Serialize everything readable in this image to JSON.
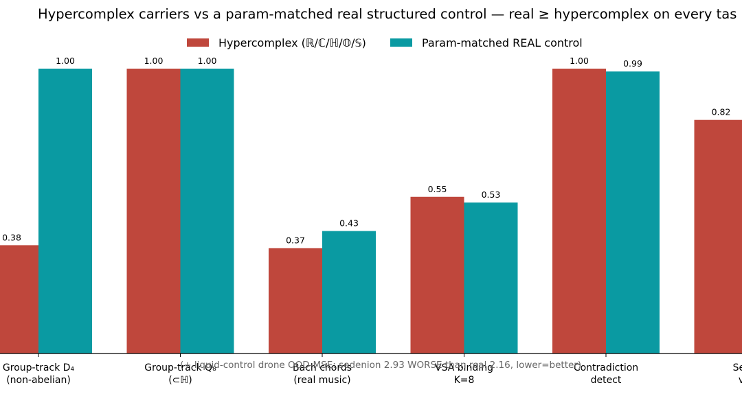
{
  "chart_data": {
    "type": "bar",
    "title": "Hypercomplex carriers vs a param-matched real structured control — real ≥ hypercomplex on every tas",
    "categories": [
      [
        "Group-track D₄",
        "(non-abelian)"
      ],
      [
        "Group-track Q₈",
        "(⊂ℍ)"
      ],
      [
        "Bach chords",
        "(real music)"
      ],
      [
        "VSA binding",
        "K=8"
      ],
      [
        "Contradiction",
        "detect"
      ],
      [
        "Seden",
        "vs s"
      ]
    ],
    "series": [
      {
        "name": "Hypercomplex (ℝ/ℂ/ℍ/𝕆/𝕊)",
        "color": "#bf473c",
        "values": [
          0.38,
          1.0,
          0.37,
          0.55,
          1.0,
          0.82
        ],
        "labels": [
          "0.38",
          "1.00",
          "0.37",
          "0.55",
          "1.00",
          "0.82"
        ]
      },
      {
        "name": "Param-matched REAL control",
        "color": "#0a9aa2",
        "values": [
          1.0,
          1.0,
          0.43,
          0.53,
          0.99,
          null
        ],
        "labels": [
          "1.00",
          "1.00",
          "0.43",
          "0.53",
          "0.99",
          ""
        ]
      }
    ],
    "ylim": [
      0,
      1.0
    ],
    "xlabel": "",
    "ylabel": "",
    "grid": false,
    "legend_position": "top-center",
    "footnote": "(+ liquid-control drone OOD-MSE: sedenion 2.93 WORSE than real 2.16, lower=better)"
  }
}
